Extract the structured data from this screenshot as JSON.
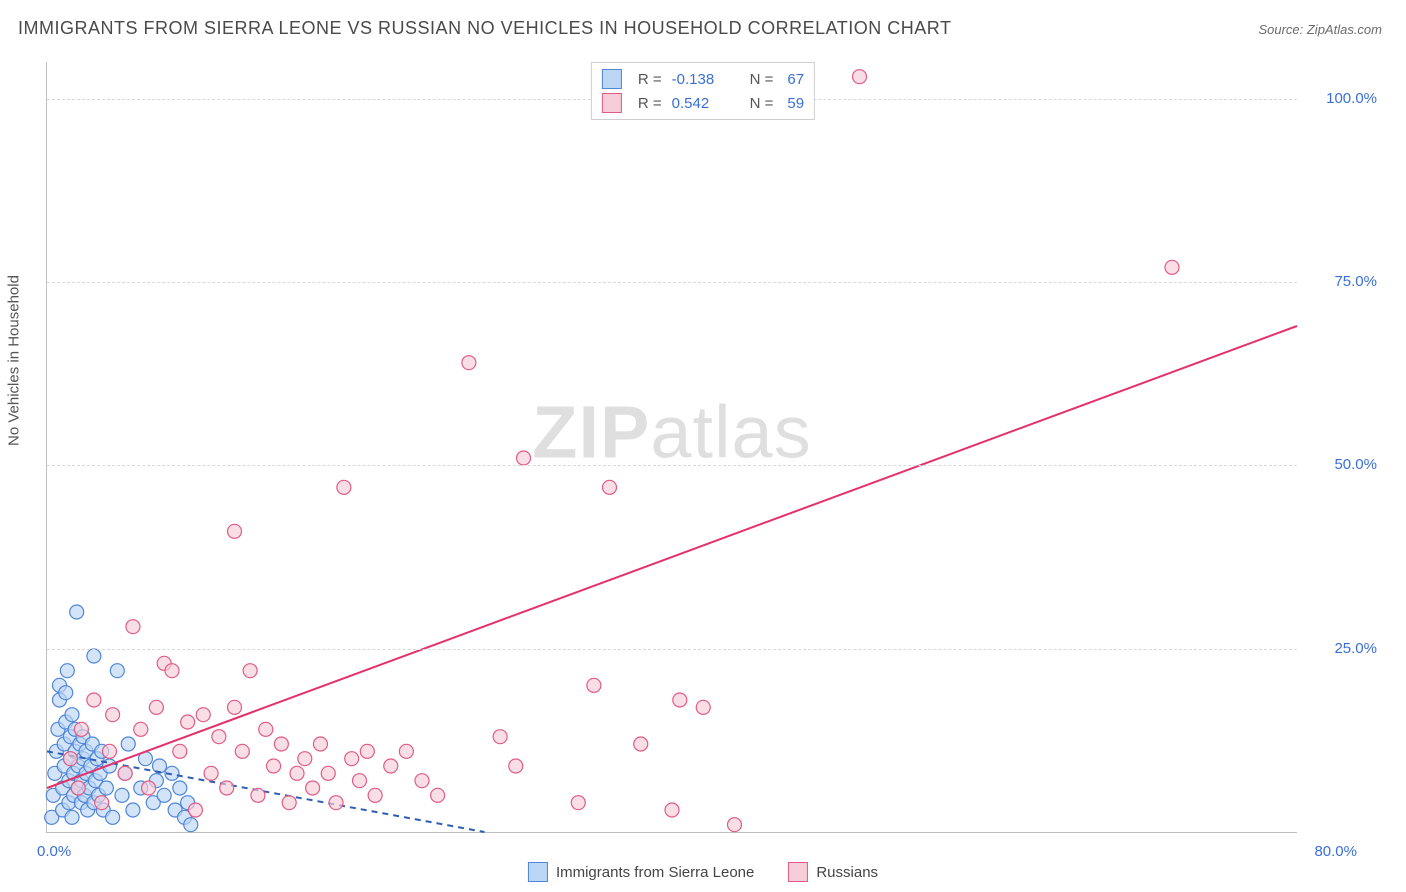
{
  "title": "IMMIGRANTS FROM SIERRA LEONE VS RUSSIAN NO VEHICLES IN HOUSEHOLD CORRELATION CHART",
  "source_prefix": "Source: ",
  "source_name": "ZipAtlas.com",
  "watermark_a": "ZIP",
  "watermark_b": "atlas",
  "ylabel": "No Vehicles in Household",
  "chart": {
    "type": "scatter",
    "xlim": [
      0,
      80
    ],
    "ylim": [
      0,
      105
    ],
    "x_ticks": [
      {
        "v": 0,
        "label": "0.0%"
      },
      {
        "v": 80,
        "label": "80.0%"
      }
    ],
    "y_ticks": [
      {
        "v": 25,
        "label": "25.0%"
      },
      {
        "v": 50,
        "label": "50.0%"
      },
      {
        "v": 75,
        "label": "75.0%"
      },
      {
        "v": 100,
        "label": "100.0%"
      }
    ],
    "y_grid": [
      25,
      50,
      75,
      100
    ],
    "background_color": "#ffffff",
    "grid_color": "#d9d9d9",
    "axis_color": "#bfbfbf",
    "tick_label_color": "#3a6fd8",
    "marker_radius": 7,
    "marker_stroke_width": 1.2,
    "line_width": 2,
    "series": [
      {
        "key": "sierra",
        "label": "Immigrants from Sierra Leone",
        "fill": "#bcd6f5",
        "stroke": "#4f86d9",
        "line_color": "#2f5fb3",
        "line_dash": "6 5",
        "r_value": "-0.138",
        "n_value": "67",
        "trend": {
          "x1": 0,
          "y1": 11,
          "x2": 28,
          "y2": 0
        },
        "points": [
          [
            0.3,
            2
          ],
          [
            0.4,
            5
          ],
          [
            0.5,
            8
          ],
          [
            0.6,
            11
          ],
          [
            0.7,
            14
          ],
          [
            0.8,
            18
          ],
          [
            0.8,
            20
          ],
          [
            1.0,
            3
          ],
          [
            1.0,
            6
          ],
          [
            1.1,
            9
          ],
          [
            1.1,
            12
          ],
          [
            1.2,
            15
          ],
          [
            1.2,
            19
          ],
          [
            1.3,
            22
          ],
          [
            1.4,
            4
          ],
          [
            1.4,
            7
          ],
          [
            1.5,
            10
          ],
          [
            1.5,
            13
          ],
          [
            1.6,
            16
          ],
          [
            1.6,
            2
          ],
          [
            1.7,
            5
          ],
          [
            1.7,
            8
          ],
          [
            1.8,
            11
          ],
          [
            1.8,
            14
          ],
          [
            1.9,
            30
          ],
          [
            2.0,
            6
          ],
          [
            2.0,
            9
          ],
          [
            2.1,
            12
          ],
          [
            2.2,
            4
          ],
          [
            2.2,
            7
          ],
          [
            2.3,
            10
          ],
          [
            2.3,
            13
          ],
          [
            2.4,
            5
          ],
          [
            2.5,
            8
          ],
          [
            2.5,
            11
          ],
          [
            2.6,
            3
          ],
          [
            2.7,
            6
          ],
          [
            2.8,
            9
          ],
          [
            2.9,
            12
          ],
          [
            3.0,
            24
          ],
          [
            3.0,
            4
          ],
          [
            3.1,
            7
          ],
          [
            3.2,
            10
          ],
          [
            3.3,
            5
          ],
          [
            3.4,
            8
          ],
          [
            3.5,
            11
          ],
          [
            3.6,
            3
          ],
          [
            3.8,
            6
          ],
          [
            4.0,
            9
          ],
          [
            4.2,
            2
          ],
          [
            4.5,
            22
          ],
          [
            4.8,
            5
          ],
          [
            5.0,
            8
          ],
          [
            5.2,
            12
          ],
          [
            5.5,
            3
          ],
          [
            6.0,
            6
          ],
          [
            6.3,
            10
          ],
          [
            6.8,
            4
          ],
          [
            7.0,
            7
          ],
          [
            7.2,
            9
          ],
          [
            7.5,
            5
          ],
          [
            8.0,
            8
          ],
          [
            8.2,
            3
          ],
          [
            8.5,
            6
          ],
          [
            8.8,
            2
          ],
          [
            9.0,
            4
          ],
          [
            9.2,
            1
          ]
        ]
      },
      {
        "key": "russian",
        "label": "Russians",
        "fill": "#f7cdd9",
        "stroke": "#e15b86",
        "line_color": "#e3326a",
        "line_dash": "",
        "r_value": "0.542",
        "n_value": "59",
        "trend": {
          "x1": 0,
          "y1": 6,
          "x2": 80,
          "y2": 69
        },
        "points": [
          [
            1.5,
            10
          ],
          [
            2.0,
            6
          ],
          [
            2.2,
            14
          ],
          [
            3.0,
            18
          ],
          [
            3.5,
            4
          ],
          [
            4.0,
            11
          ],
          [
            4.2,
            16
          ],
          [
            5.0,
            8
          ],
          [
            5.5,
            28
          ],
          [
            6.0,
            14
          ],
          [
            6.5,
            6
          ],
          [
            7.0,
            17
          ],
          [
            7.5,
            23
          ],
          [
            8.0,
            22
          ],
          [
            8.5,
            11
          ],
          [
            9.0,
            15
          ],
          [
            9.5,
            3
          ],
          [
            10,
            16
          ],
          [
            10.5,
            8
          ],
          [
            11,
            13
          ],
          [
            11.5,
            6
          ],
          [
            12,
            17
          ],
          [
            12.5,
            11
          ],
          [
            13,
            22
          ],
          [
            13.5,
            5
          ],
          [
            14,
            14
          ],
          [
            14.5,
            9
          ],
          [
            15,
            12
          ],
          [
            15.5,
            4
          ],
          [
            16,
            8
          ],
          [
            16.5,
            10
          ],
          [
            17,
            6
          ],
          [
            17.5,
            12
          ],
          [
            18,
            8
          ],
          [
            18.5,
            4
          ],
          [
            19,
            47
          ],
          [
            19.5,
            10
          ],
          [
            20,
            7
          ],
          [
            20.5,
            11
          ],
          [
            21,
            5
          ],
          [
            22,
            9
          ],
          [
            23,
            11
          ],
          [
            24,
            7
          ],
          [
            25,
            5
          ],
          [
            27,
            64
          ],
          [
            29,
            13
          ],
          [
            30,
            9
          ],
          [
            30.5,
            51
          ],
          [
            34,
            4
          ],
          [
            35,
            20
          ],
          [
            36,
            47
          ],
          [
            38,
            12
          ],
          [
            40,
            3
          ],
          [
            40.5,
            18
          ],
          [
            42,
            17
          ],
          [
            44,
            1
          ],
          [
            52,
            103
          ],
          [
            72,
            77
          ],
          [
            12,
            41
          ]
        ]
      }
    ]
  },
  "legend_top_labels": {
    "R": "R =",
    "N": "N ="
  }
}
